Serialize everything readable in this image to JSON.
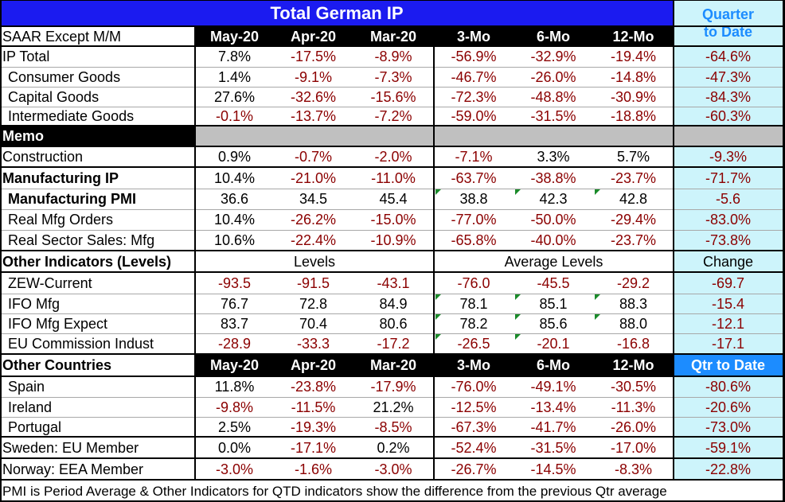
{
  "title": "Total German IP",
  "quarter_header": [
    "Quarter",
    "to Date"
  ],
  "subheader_label": "SAAR Except M/M",
  "columns": [
    "May-20",
    "Apr-20",
    "Mar-20",
    "3-Mo",
    "6-Mo",
    "12-Mo"
  ],
  "rows": [
    {
      "label": "IP Total",
      "bold": false,
      "indent": false,
      "values": [
        "7.8%",
        "-17.5%",
        "-8.9%",
        "-56.9%",
        "-32.9%",
        "-19.4%",
        "-64.6%"
      ]
    },
    {
      "label": "Consumer Goods",
      "bold": false,
      "indent": true,
      "values": [
        "1.4%",
        "-9.1%",
        "-7.3%",
        "-46.7%",
        "-26.0%",
        "-14.8%",
        "-47.3%"
      ]
    },
    {
      "label": "Capital Goods",
      "bold": false,
      "indent": true,
      "values": [
        "27.6%",
        "-32.6%",
        "-15.6%",
        "-72.3%",
        "-48.8%",
        "-30.9%",
        "-84.3%"
      ]
    },
    {
      "label": "Intermediate Goods",
      "bold": false,
      "indent": true,
      "values": [
        "-0.1%",
        "-13.7%",
        "-7.2%",
        "-59.0%",
        "-31.5%",
        "-18.8%",
        "-60.3%"
      ]
    },
    {
      "label": "Construction",
      "bold": false,
      "indent": false,
      "values": [
        "0.9%",
        "-0.7%",
        "-2.0%",
        "-7.1%",
        "3.3%",
        "5.7%",
        "-9.3%"
      ]
    },
    {
      "label": "Manufacturing IP",
      "bold": true,
      "indent": false,
      "values": [
        "10.4%",
        "-21.0%",
        "-11.0%",
        "-63.7%",
        "-38.8%",
        "-23.7%",
        "-71.7%"
      ]
    },
    {
      "label": "Manufacturing PMI",
      "bold": true,
      "indent": true,
      "values": [
        "36.6",
        "34.5",
        "45.4",
        "38.8",
        "42.3",
        "42.8",
        "-5.6"
      ]
    },
    {
      "label": "Real Mfg Orders",
      "bold": false,
      "indent": true,
      "values": [
        "10.4%",
        "-26.2%",
        "-15.0%",
        "-77.0%",
        "-50.0%",
        "-29.4%",
        "-83.0%"
      ]
    },
    {
      "label": "Real Sector Sales: Mfg",
      "bold": false,
      "indent": true,
      "values": [
        "10.6%",
        "-22.4%",
        "-10.9%",
        "-65.8%",
        "-40.0%",
        "-23.7%",
        "-73.8%"
      ]
    },
    {
      "label": "ZEW-Current",
      "bold": false,
      "indent": true,
      "values": [
        "-93.5",
        "-91.5",
        "-43.1",
        "-76.0",
        "-45.5",
        "-29.2",
        "-69.7"
      ]
    },
    {
      "label": "IFO Mfg",
      "bold": false,
      "indent": true,
      "values": [
        "76.7",
        "72.8",
        "84.9",
        "78.1",
        "85.1",
        "88.3",
        "-15.4"
      ]
    },
    {
      "label": "IFO Mfg Expect",
      "bold": false,
      "indent": true,
      "values": [
        "83.7",
        "70.4",
        "80.6",
        "78.2",
        "85.6",
        "88.0",
        "-12.1"
      ]
    },
    {
      "label": "EU Commission Indust",
      "bold": false,
      "indent": true,
      "values": [
        "-28.9",
        "-33.3",
        "-17.2",
        "-26.5",
        "-20.1",
        "-16.8",
        "-17.1"
      ]
    },
    {
      "label": "Spain",
      "bold": false,
      "indent": true,
      "values": [
        "11.8%",
        "-23.8%",
        "-17.9%",
        "-76.0%",
        "-49.1%",
        "-30.5%",
        "-80.6%"
      ]
    },
    {
      "label": "Ireland",
      "bold": false,
      "indent": true,
      "values": [
        "-9.8%",
        "-11.5%",
        "21.2%",
        "-12.5%",
        "-13.4%",
        "-11.3%",
        "-20.6%"
      ]
    },
    {
      "label": "Portugal",
      "bold": false,
      "indent": true,
      "values": [
        "2.5%",
        "-19.3%",
        "-8.5%",
        "-67.3%",
        "-41.7%",
        "-26.0%",
        "-73.0%"
      ]
    },
    {
      "label": "Sweden: EU Member",
      "bold": false,
      "indent": false,
      "values": [
        "0.0%",
        "-17.1%",
        "0.2%",
        "-52.4%",
        "-31.5%",
        "-17.0%",
        "-59.1%"
      ]
    },
    {
      "label": "Norway: EEA Member",
      "bold": false,
      "indent": false,
      "values": [
        "-3.0%",
        "-1.6%",
        "-3.0%",
        "-26.7%",
        "-14.5%",
        "-8.3%",
        "-22.8%"
      ]
    }
  ],
  "memo_label": "Memo",
  "other_indicators": {
    "label": "Other Indicators (Levels)",
    "levels": "Levels",
    "average_levels": "Average Levels",
    "change": "Change"
  },
  "other_countries": {
    "label": "Other Countries",
    "qtr_to_date": "Qtr to Date"
  },
  "footnote": "PMI is Period Average & Other Indicators for QTD indicators show the difference from the previous Qtr average",
  "colors": {
    "negative": "#8b0000",
    "positive": "#000000",
    "title_bg": "#1b1bf0",
    "quarter_bg": "#cdf4fb",
    "quarter_text": "#1c8cff"
  }
}
